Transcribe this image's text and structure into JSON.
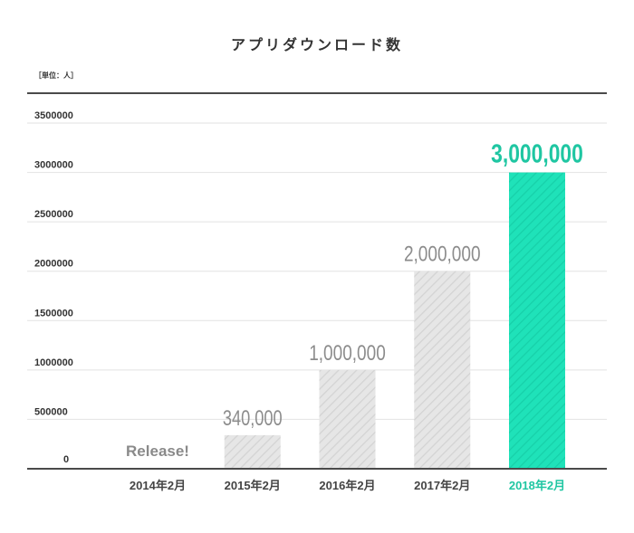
{
  "chart_data": {
    "type": "bar",
    "title": "アプリダウンロード数",
    "ylabel": "［単位：人］",
    "categories": [
      "2014年2月",
      "2015年2月",
      "2016年2月",
      "2017年2月",
      "2018年2月"
    ],
    "values": [
      null,
      340000,
      1000000,
      2000000,
      3000000
    ],
    "data_labels": [
      "",
      "340,000",
      "1,000,000",
      "2,000,000",
      "3,000,000"
    ],
    "annotations": [
      {
        "category_index": 0,
        "text": "Release!"
      }
    ],
    "yticks": [
      0,
      500000,
      1000000,
      1500000,
      2000000,
      2500000,
      3000000,
      3500000
    ],
    "ytick_labels": [
      "0",
      "500000",
      "1000000",
      "1500000",
      "2000000",
      "2500000",
      "3000000",
      "3500000"
    ],
    "ylim": [
      0,
      3500000
    ],
    "grid": true,
    "highlight_index": 4,
    "colors": {
      "bar": "#e6e6e6",
      "bar_hatch": "#d3d3d3",
      "highlight": "#1fe2b9",
      "highlight_hatch": "#17d0a9",
      "highlight_text": "#1fc6a2",
      "value_text": "#8c8c8c",
      "axis": "#4a4a4a",
      "grid": "#e2e2e2",
      "text": "#444444"
    }
  }
}
